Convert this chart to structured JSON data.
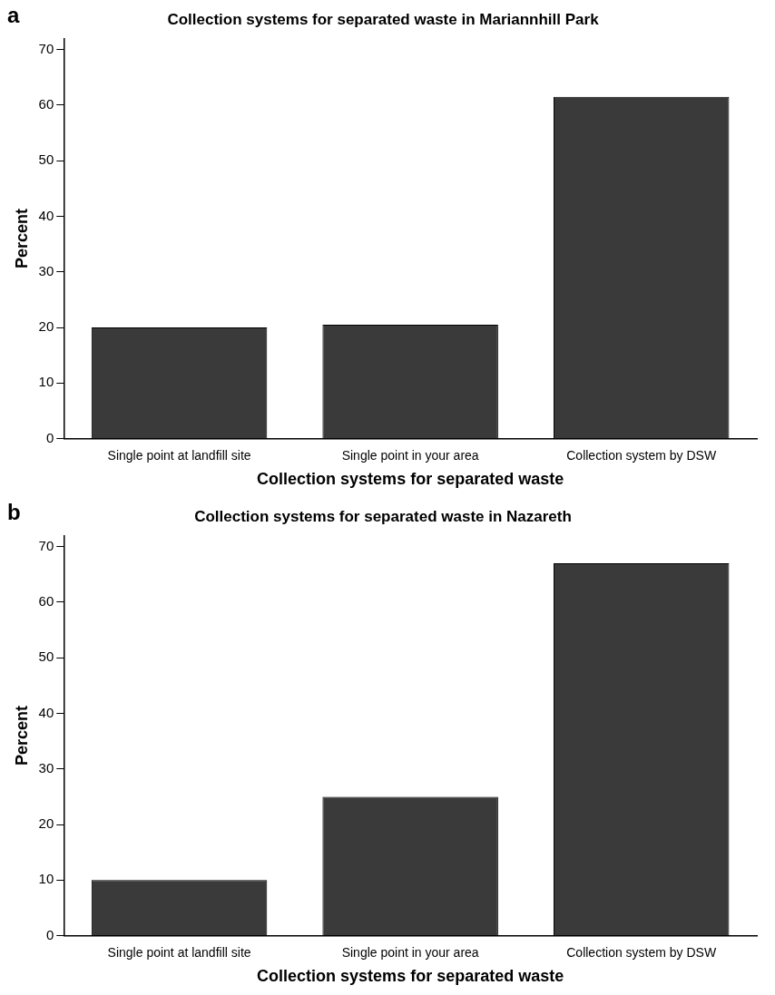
{
  "chart_data": [
    {
      "type": "bar",
      "title": "Collection systems for separated waste in Mariannhill Park",
      "xlabel": "Collection systems for separated waste",
      "ylabel": "Percent",
      "annotations": [
        "a"
      ],
      "categories": [
        "Single point at landfill site",
        "Single point in your area",
        "Collection system by DSW"
      ],
      "values": [
        20,
        20.5,
        61.5
      ],
      "color": "#3a3a3a",
      "ylim": [
        0,
        72
      ],
      "yticks": [
        0,
        10,
        20,
        30,
        40,
        50,
        60,
        70
      ],
      "grid": false,
      "legend": false
    },
    {
      "type": "bar",
      "title": "Collection systems for separated waste in Nazareth",
      "xlabel": "Collection systems for separated waste",
      "ylabel": "Percent",
      "annotations": [
        "b"
      ],
      "categories": [
        "Single point at landfill site",
        "Single point in your area",
        "Collection system by DSW"
      ],
      "values": [
        10,
        25,
        67
      ],
      "color": "#3a3a3a",
      "ylim": [
        0,
        72
      ],
      "yticks": [
        0,
        10,
        20,
        30,
        40,
        50,
        60,
        70
      ],
      "grid": false,
      "legend": false
    }
  ]
}
